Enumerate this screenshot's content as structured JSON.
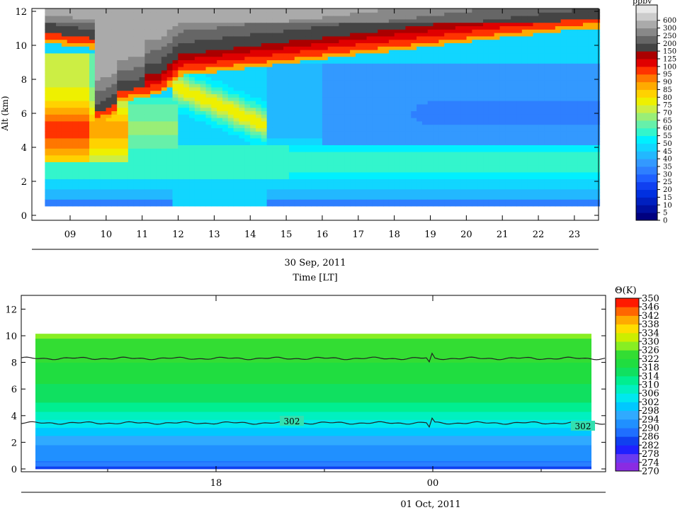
{
  "chart_data": [
    {
      "type": "heatmap",
      "title": "",
      "ylabel": "Alt (km)",
      "xlabel_date": "30 Sep, 2011",
      "xlabel_time": "Time [LT]",
      "ylim": [
        0,
        12
      ],
      "xlim": [
        8.1,
        23.9
      ],
      "yticks": [
        "0",
        "2",
        "4",
        "6",
        "8",
        "10",
        "12"
      ],
      "xticks": [
        "09",
        "10",
        "11",
        "12",
        "13",
        "14",
        "15",
        "16",
        "17",
        "18",
        "19",
        "20",
        "21",
        "22",
        "23"
      ],
      "colorbar": {
        "unit": "ppbv",
        "levels": [
          "0",
          "5",
          "10",
          "15",
          "20",
          "25",
          "30",
          "35",
          "40",
          "45",
          "50",
          "55",
          "60",
          "65",
          "70",
          "75",
          "80",
          "85",
          "90",
          "95",
          "100",
          "125",
          "150",
          "200",
          "250",
          "300",
          "600"
        ],
        "colors": [
          "#000080",
          "#0010a0",
          "#0020c0",
          "#0030e0",
          "#1040f0",
          "#1f60ff",
          "#2e7fff",
          "#3399ff",
          "#22b8ff",
          "#11d6ff",
          "#00f0ff",
          "#33f5cc",
          "#66f0aa",
          "#99ee77",
          "#ccee44",
          "#eef000",
          "#ffd200",
          "#ffaa00",
          "#ff7700",
          "#ff3300",
          "#e00000",
          "#aa0000",
          "#444444",
          "#666666",
          "#888888",
          "#aaaaaa",
          "#cccccc",
          "#e8e8e8"
        ]
      }
    },
    {
      "type": "area",
      "title": "",
      "colorbar_title": "Θ(K)",
      "xlabel_date": "01 Oct, 2011",
      "ylim": [
        0,
        13
      ],
      "yticks": [
        "0",
        "2",
        "4",
        "6",
        "8",
        "10",
        "12"
      ],
      "xticks": [
        "18",
        "00"
      ],
      "contour_labels": [
        "302",
        "302"
      ],
      "colorbar": {
        "levels": [
          "270",
          "274",
          "278",
          "282",
          "286",
          "290",
          "294",
          "298",
          "302",
          "306",
          "310",
          "314",
          "318",
          "322",
          "326",
          "330",
          "334",
          "338",
          "342",
          "346",
          "350"
        ],
        "colors": [
          "#8a2be2",
          "#6a3af0",
          "#2020ff",
          "#1040f0",
          "#1f6fff",
          "#2090ff",
          "#30aaff",
          "#00c8ff",
          "#00e8ee",
          "#00f0c0",
          "#00ee90",
          "#10e060",
          "#20dd40",
          "#33dd33",
          "#88ee22",
          "#ccee00",
          "#ffdd00",
          "#ffaa00",
          "#ff6600",
          "#ff1a00"
        ]
      }
    }
  ]
}
